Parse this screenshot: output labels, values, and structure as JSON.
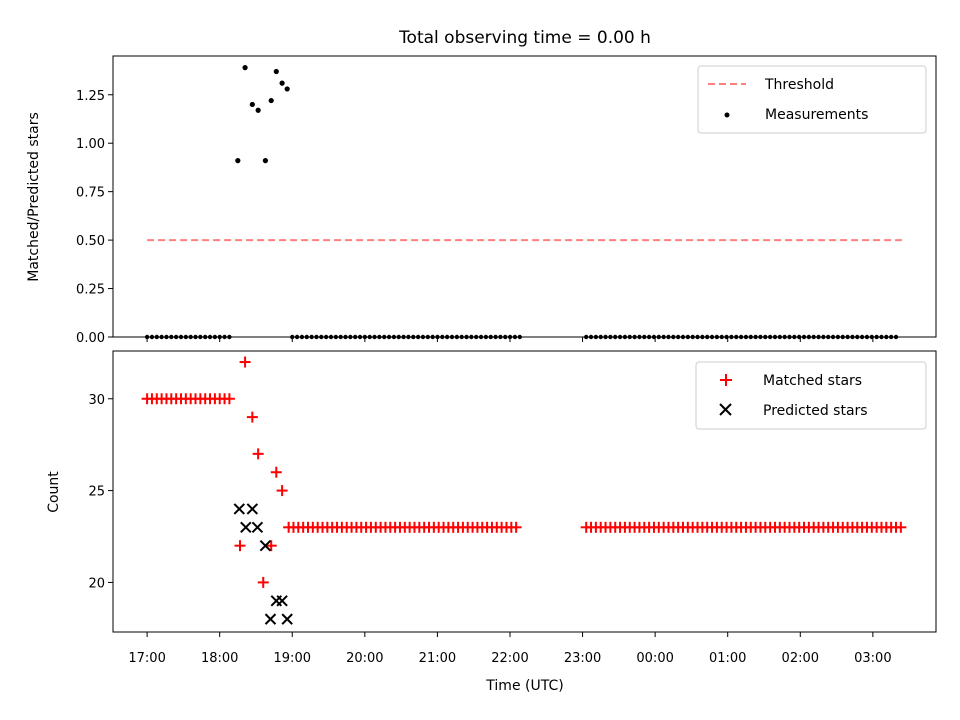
{
  "title": "Total observing time = 0.00 h",
  "colors": {
    "threshold": "#ff7f7f",
    "measurements": "#000000",
    "matched": "#ff0000",
    "predicted": "#000000"
  },
  "chart_data": [
    {
      "type": "scatter",
      "ylabel": "Matched/Predicted stars",
      "ylim": [
        0,
        1.45
      ],
      "yticks": [
        0.0,
        0.25,
        0.5,
        0.75,
        1.0,
        1.25
      ],
      "yticklabels": [
        "0.00",
        "0.25",
        "0.50",
        "0.75",
        "1.00",
        "1.25"
      ],
      "xlim": [
        16.53,
        27.87
      ],
      "legend_position": "top-right",
      "threshold": {
        "name": "Threshold",
        "y": 0.5,
        "x_range": [
          17.0,
          27.4
        ]
      },
      "measurements": {
        "name": "Measurements",
        "points": [
          [
            18.25,
            0.91
          ],
          [
            18.35,
            1.39
          ],
          [
            18.45,
            1.2
          ],
          [
            18.53,
            1.17
          ],
          [
            18.63,
            0.91
          ],
          [
            18.71,
            1.22
          ],
          [
            18.78,
            1.37
          ],
          [
            18.86,
            1.31
          ],
          [
            18.93,
            1.28
          ]
        ],
        "zero_segments": [
          {
            "from": 17.0,
            "to": 18.2,
            "step": 0.0667
          },
          {
            "from": 19.0,
            "to": 22.15,
            "step": 0.0667
          },
          {
            "from": 23.05,
            "to": 27.37,
            "step": 0.0667
          }
        ]
      }
    },
    {
      "type": "scatter",
      "xlabel": "Time (UTC)",
      "ylabel": "Count",
      "ylim": [
        17.3,
        32.6
      ],
      "yticks": [
        20,
        25,
        30
      ],
      "yticklabels": [
        "20",
        "25",
        "30"
      ],
      "xlim": [
        16.53,
        27.87
      ],
      "xticks": [
        17,
        18,
        19,
        20,
        21,
        22,
        23,
        24,
        25,
        26,
        27
      ],
      "xticklabels": [
        "17:00",
        "18:00",
        "19:00",
        "20:00",
        "21:00",
        "22:00",
        "23:00",
        "00:00",
        "01:00",
        "02:00",
        "03:00"
      ],
      "legend_position": "top-right",
      "series": [
        {
          "name": "Matched stars",
          "marker": "plus",
          "points": [
            [
              18.28,
              22
            ],
            [
              18.35,
              32
            ],
            [
              18.45,
              29
            ],
            [
              18.53,
              27
            ],
            [
              18.6,
              20
            ],
            [
              18.71,
              22
            ],
            [
              18.78,
              26
            ],
            [
              18.86,
              25
            ]
          ],
          "segments": [
            {
              "from": 17.0,
              "to": 18.2,
              "step": 0.0667,
              "value": 30
            },
            {
              "from": 18.95,
              "to": 22.15,
              "step": 0.0667,
              "value": 23
            },
            {
              "from": 23.05,
              "to": 27.4,
              "step": 0.0667,
              "value": 23
            }
          ]
        },
        {
          "name": "Predicted stars",
          "marker": "x",
          "points": [
            [
              18.27,
              24
            ],
            [
              18.36,
              23
            ],
            [
              18.45,
              24
            ],
            [
              18.52,
              23
            ],
            [
              18.63,
              22
            ],
            [
              18.7,
              18
            ],
            [
              18.78,
              19
            ],
            [
              18.86,
              19
            ],
            [
              18.93,
              18
            ]
          ]
        }
      ]
    }
  ]
}
